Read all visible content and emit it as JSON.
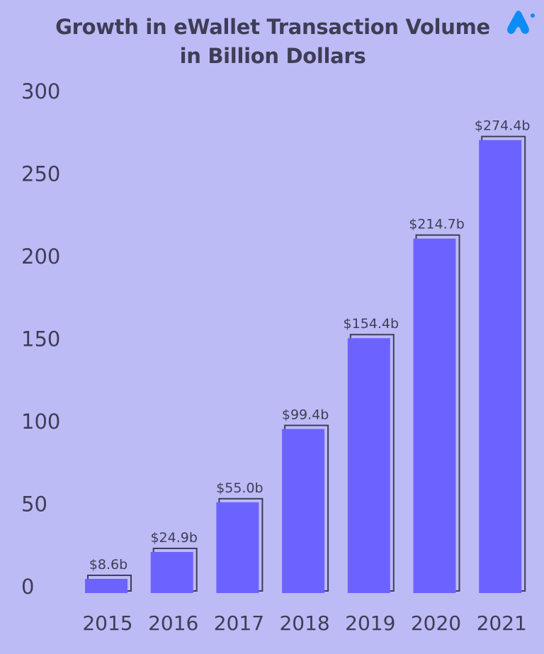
{
  "chart_data": {
    "type": "bar",
    "title": "Growth in eWallet Transaction Volume in Billion Dollars",
    "categories": [
      "2015",
      "2016",
      "2017",
      "2018",
      "2019",
      "2020",
      "2021"
    ],
    "values": [
      8.6,
      24.9,
      55.0,
      99.4,
      154.4,
      214.7,
      274.4
    ],
    "data_labels": [
      "$8.6b",
      "$24.9b",
      "$55.0b",
      "$99.4b",
      "$154.4b",
      "$214.7b",
      "$274.4b"
    ],
    "yticks": [
      0,
      50,
      100,
      150,
      200,
      250,
      300
    ],
    "ylim": [
      0,
      300
    ],
    "grid": false,
    "xlabel": "",
    "ylabel": "",
    "colors": {
      "bar": "#6c63ff",
      "outline": "#3f3d56",
      "background": "#bdbbf6",
      "text": "#3f3d56",
      "logo": "#0d8cf5"
    }
  },
  "logo": {
    "icon": "brand-logo-icon"
  }
}
